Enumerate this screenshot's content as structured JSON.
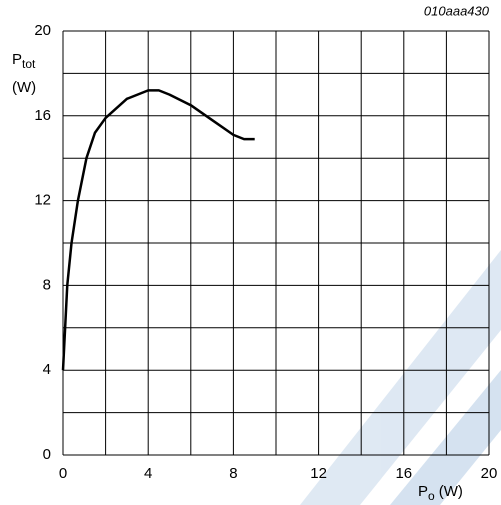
{
  "chart_data": {
    "type": "line",
    "annotation": "010aaa430",
    "ylabel": {
      "main": "P",
      "sub": "tot",
      "unit": "(W)"
    },
    "xlabel": {
      "main": "P",
      "sub": "o",
      "unit": "(W)"
    },
    "x": [
      0,
      0.1,
      0.2,
      0.4,
      0.7,
      1.1,
      1.5,
      2,
      3,
      4,
      4.5,
      5,
      6,
      7,
      8,
      8.5,
      9
    ],
    "values": [
      4,
      6,
      8,
      10,
      12,
      14,
      15.2,
      15.9,
      16.8,
      17.2,
      17.2,
      17.0,
      16.5,
      15.8,
      15.1,
      14.9,
      14.9
    ],
    "color": "#000000",
    "xlim": [
      0,
      20
    ],
    "ylim": [
      0,
      20
    ],
    "xticks": [
      0,
      4,
      8,
      12,
      16,
      20
    ],
    "yticks": [
      0,
      4,
      8,
      12,
      16,
      20
    ],
    "xgrid": [
      0,
      2,
      4,
      6,
      8,
      10,
      12,
      14,
      16,
      18,
      20
    ],
    "ygrid": [
      0,
      2,
      4,
      6,
      8,
      10,
      12,
      14,
      16,
      18,
      20
    ]
  }
}
